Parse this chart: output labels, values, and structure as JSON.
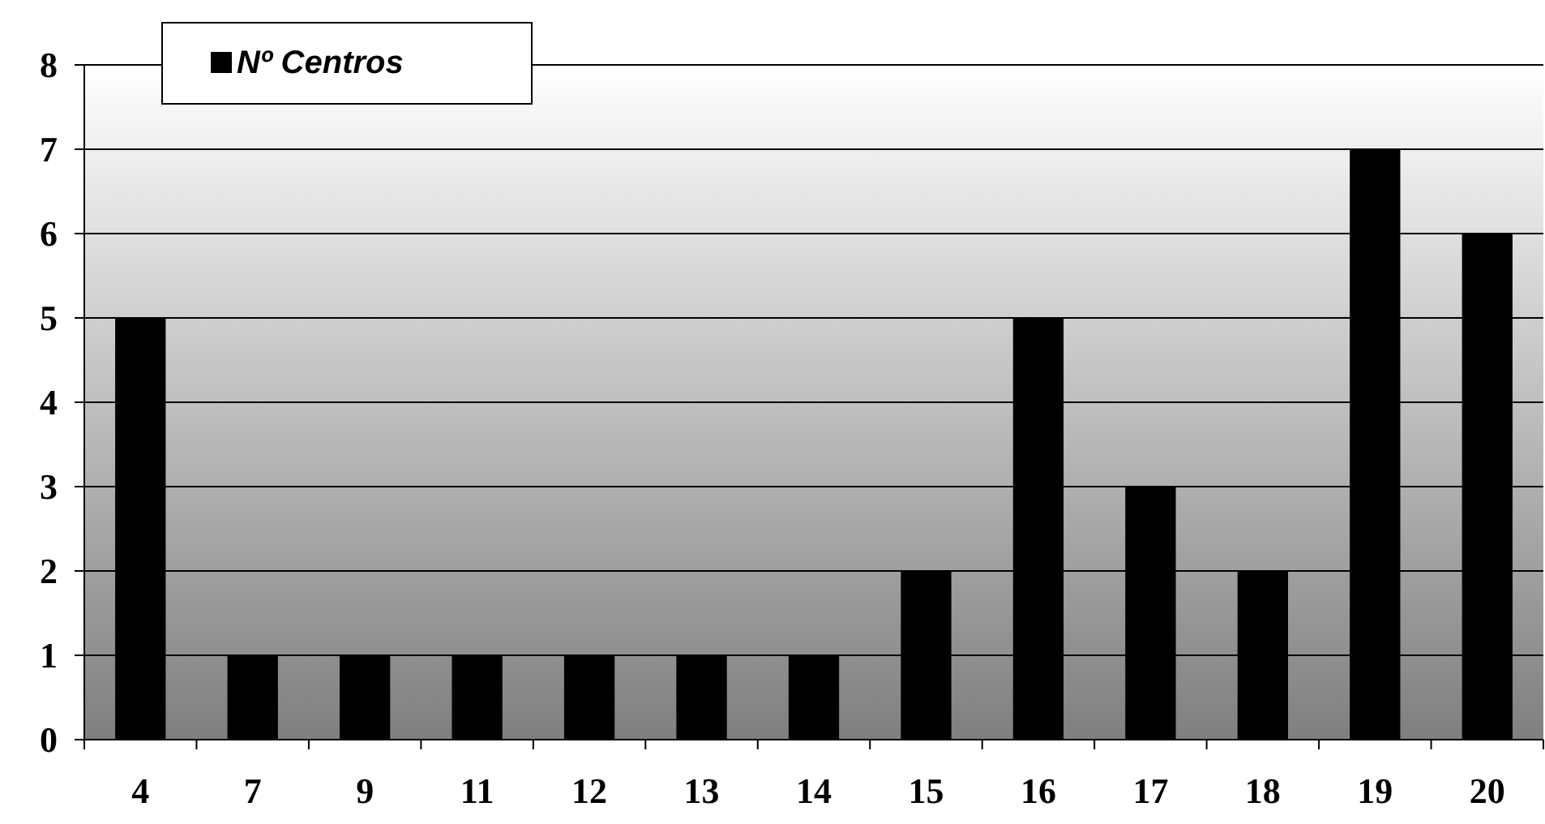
{
  "chart_data": {
    "type": "bar",
    "categories": [
      "4",
      "7",
      "9",
      "11",
      "12",
      "13",
      "14",
      "15",
      "16",
      "17",
      "18",
      "19",
      "20"
    ],
    "series": [
      {
        "name": "Nº Centros",
        "color": "#000000",
        "values": [
          5,
          1,
          1,
          1,
          1,
          1,
          1,
          2,
          5,
          3,
          2,
          7,
          6
        ]
      }
    ],
    "ylim": [
      0,
      8
    ],
    "yticks": [
      0,
      1,
      2,
      3,
      4,
      5,
      6,
      7,
      8
    ],
    "grid": "y",
    "legend": "top left"
  }
}
